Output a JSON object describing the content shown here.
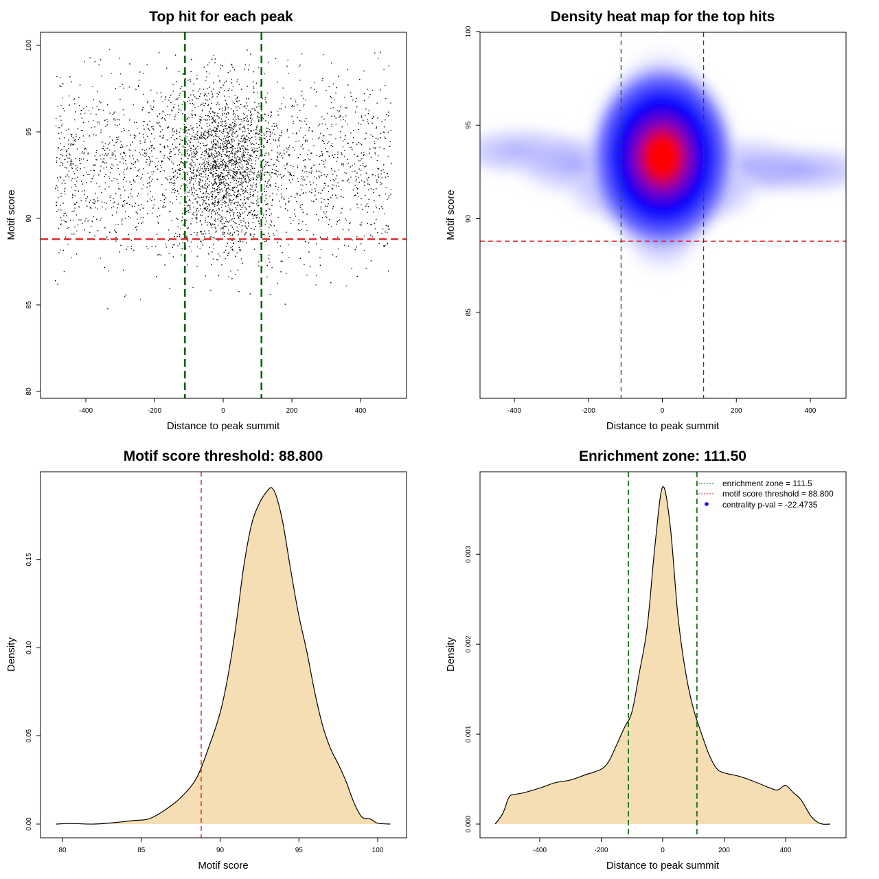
{
  "chart_data": [
    {
      "type": "scatter",
      "title": "Top hit for each peak",
      "xlabel": "Distance to peak summit",
      "ylabel": "Motif score",
      "xlim": [
        -500,
        500
      ],
      "ylim": [
        80,
        100
      ],
      "xticks": [
        "-400",
        "-200",
        "0",
        "200",
        "400"
      ],
      "yticks": [
        "80",
        "85",
        "90",
        "95",
        "100"
      ],
      "grid": false,
      "point_color": "#000000",
      "approx_points": 6000,
      "score_center": 93.0,
      "score_sd": 2.5,
      "enrichment_zone": 111.5,
      "motif_score_threshold": 88.8,
      "zone_color": "#006400",
      "threshold_color": "#e31a1c"
    },
    {
      "type": "heatmap",
      "title": "Density heat map for the top hits",
      "xlabel": "Distance to peak summit",
      "ylabel": "Motif score",
      "xlim": [
        -500,
        500
      ],
      "ylim": [
        80,
        100
      ],
      "xticks": [
        "-400",
        "-200",
        "0",
        "200",
        "400"
      ],
      "yticks": [
        "85",
        "90",
        "95",
        "100"
      ],
      "grid": false,
      "peak_center": [
        0,
        93.3
      ],
      "colors": [
        "#ffffff",
        "#0000ff",
        "#ff0000"
      ],
      "enrichment_zone": 111.5,
      "motif_score_threshold": 88.8,
      "zone_color": "#006400",
      "threshold_color": "#e31a1c"
    },
    {
      "type": "area",
      "title": "Motif score threshold: 88.800",
      "xlabel": "Motif score",
      "ylabel": "Density",
      "xlim": [
        79.5,
        100.8
      ],
      "ylim": [
        0,
        0.19
      ],
      "xticks": [
        "80",
        "85",
        "90",
        "95",
        "100"
      ],
      "yticks": [
        "0.00",
        "0.05",
        "0.10",
        "0.15"
      ],
      "grid": false,
      "fill": "#f5deb3",
      "x": [
        79.6,
        80.5,
        82,
        83.5,
        84.5,
        85.5,
        86.5,
        87.5,
        88.5,
        89.3,
        90.0,
        90.5,
        91.0,
        91.5,
        92.0,
        92.5,
        93.0,
        93.3,
        93.6,
        94.0,
        94.5,
        95.0,
        95.5,
        96.0,
        96.5,
        97.0,
        97.5,
        98.0,
        98.5,
        99.0,
        99.5,
        100.0,
        100.8
      ],
      "y": [
        0.0,
        0.0003,
        0.0,
        0.001,
        0.002,
        0.003,
        0.008,
        0.015,
        0.026,
        0.044,
        0.063,
        0.084,
        0.112,
        0.146,
        0.17,
        0.182,
        0.189,
        0.1905,
        0.185,
        0.17,
        0.143,
        0.118,
        0.098,
        0.075,
        0.056,
        0.043,
        0.034,
        0.024,
        0.012,
        0.004,
        0.003,
        0.0005,
        0.0
      ],
      "motif_score_threshold": 88.8,
      "threshold_color": "#e31a1c"
    },
    {
      "type": "area",
      "title": "Enrichment zone: 111.50",
      "xlabel": "Distance to peak summit",
      "ylabel": "Density",
      "xlim": [
        -550,
        550
      ],
      "ylim": [
        0,
        0.0038
      ],
      "xticks": [
        "-400",
        "-200",
        "0",
        "200",
        "400"
      ],
      "yticks": [
        "0.000",
        "0.001",
        "0.002",
        "0.003"
      ],
      "grid": false,
      "fill": "#f5deb3",
      "x": [
        -545,
        -520,
        -500,
        -480,
        -450,
        -400,
        -350,
        -300,
        -250,
        -200,
        -175,
        -150,
        -125,
        -100,
        -75,
        -50,
        -25,
        0,
        25,
        50,
        75,
        100,
        125,
        150,
        175,
        200,
        250,
        300,
        350,
        375,
        400,
        425,
        450,
        480,
        500,
        520,
        545
      ],
      "y": [
        0.0,
        0.00012,
        0.0003,
        0.00033,
        0.00035,
        0.0004,
        0.00046,
        0.00049,
        0.00055,
        0.00061,
        0.0007,
        0.00088,
        0.00107,
        0.00125,
        0.0017,
        0.0022,
        0.0031,
        0.00375,
        0.0033,
        0.0023,
        0.00168,
        0.00128,
        0.00102,
        0.00078,
        0.00062,
        0.00057,
        0.00053,
        0.00047,
        0.0004,
        0.00038,
        0.00043,
        0.00035,
        0.00027,
        0.0001,
        3e-05,
        0.0,
        0.0
      ],
      "enrichment_zone": 111.5,
      "zone_color": "#006400",
      "legend_position": "top-right",
      "legend": [
        {
          "label": "enrichment zone = 111.5",
          "symbol": "dotted-line",
          "color": "#006400"
        },
        {
          "label": "motif score threshold = 88.800",
          "symbol": "dotted-line",
          "color": "#e31a1c"
        },
        {
          "label": "centrality p-val = -22.4735",
          "symbol": "point",
          "color": "#0000ff"
        }
      ]
    }
  ]
}
